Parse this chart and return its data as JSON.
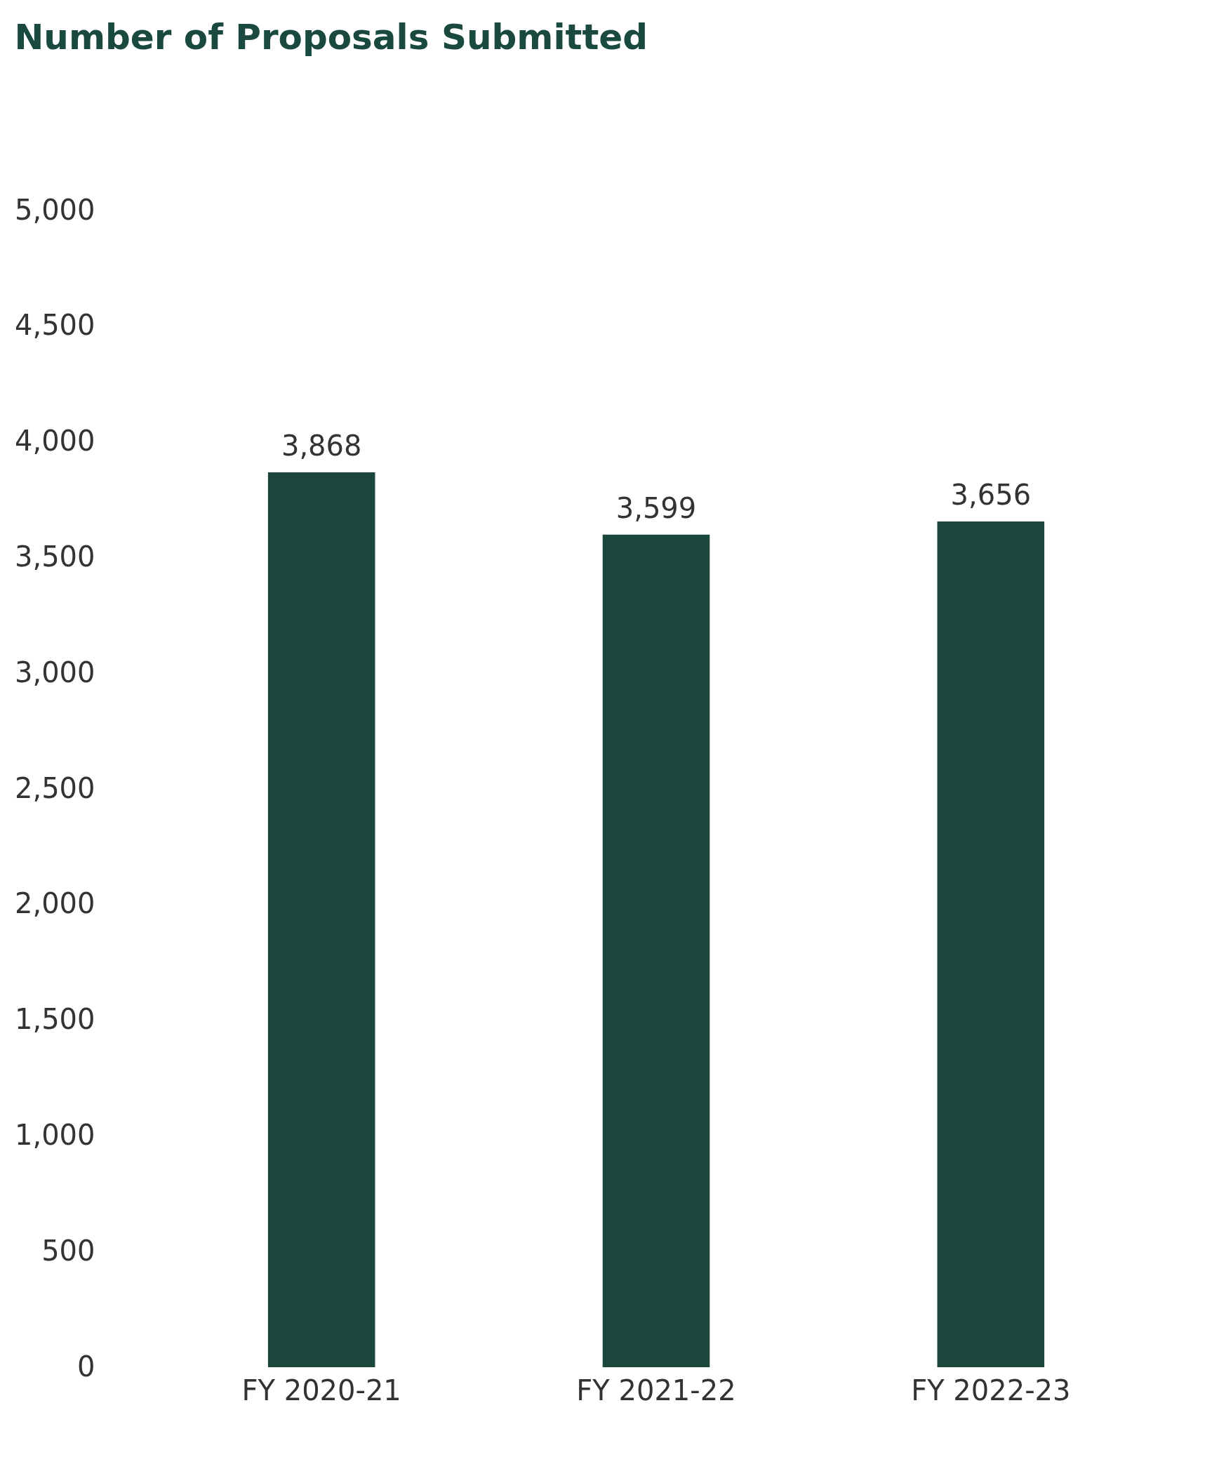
{
  "chart_data": {
    "type": "bar",
    "title": "Number of Proposals Submitted",
    "categories": [
      "FY 2020-21",
      "FY 2021-22",
      "FY 2022-23"
    ],
    "values": [
      3868,
      3599,
      3656
    ],
    "color": "#1b463c",
    "value_labels": [
      "3,868",
      "3,599",
      "3,656"
    ],
    "ylim": [
      0,
      5000
    ],
    "yticks": [
      0,
      {
        "value": 500,
        "label": "500"
      },
      {
        "value": 1000,
        "label": "1,000"
      },
      {
        "value": 1500,
        "label": "1,500"
      },
      {
        "value": 2000,
        "label": "2,000"
      },
      {
        "value": 2500,
        "label": "2,500"
      },
      {
        "value": 3000,
        "label": "3,000"
      },
      {
        "value": 3500,
        "label": "3,500"
      },
      {
        "value": 4000,
        "label": "4,000"
      },
      {
        "value": 4500,
        "label": "4,500"
      },
      {
        "value": 5000,
        "label": "5,000"
      }
    ],
    "grid": false
  }
}
